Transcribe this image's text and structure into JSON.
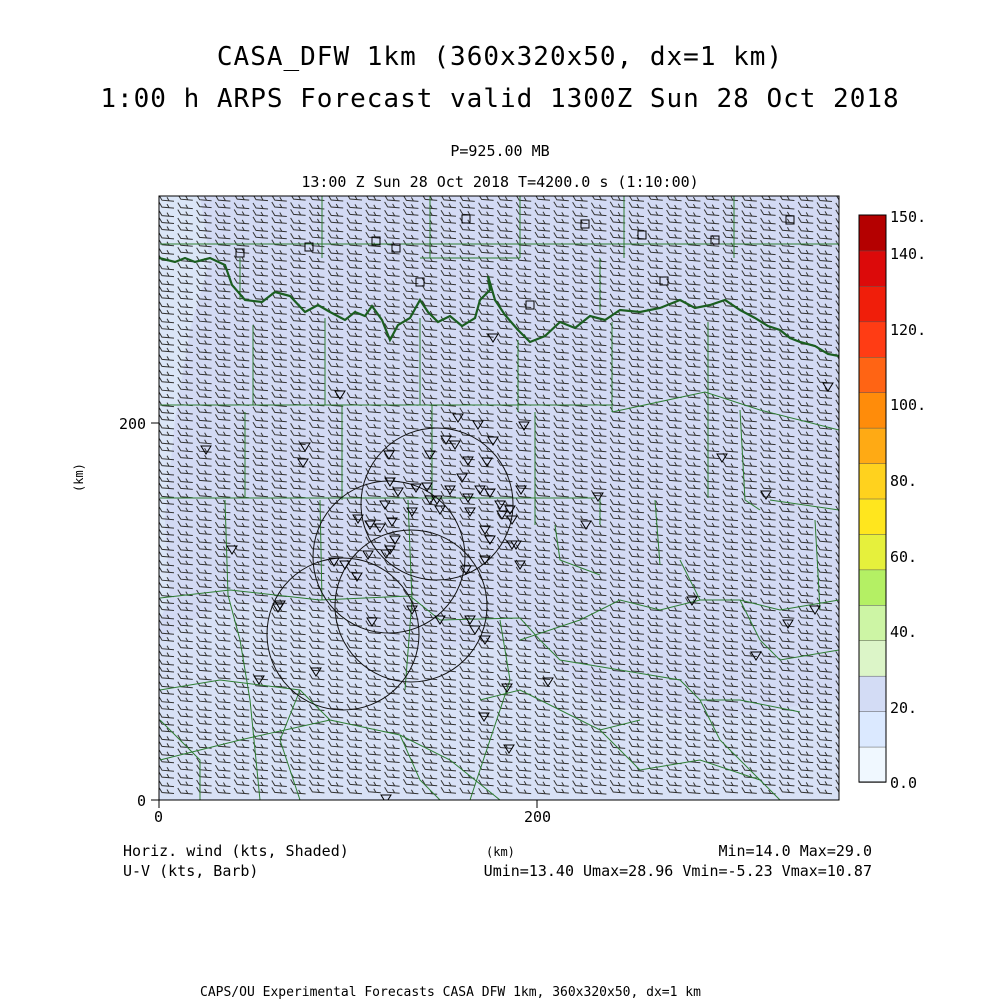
{
  "header": {
    "title1": "CASA_DFW 1km (360x320x50, dx=1 km)",
    "title2": "1:00 h ARPS Forecast valid 1300Z Sun 28 Oct 2018",
    "pressure": "P=925.00 MB",
    "time": "13:00 Z Sun 28 Oct 2018   T=4200.0 s (1:10:00)"
  },
  "axes": {
    "x_unit": "(km)",
    "y_unit": "(km)",
    "x_ticks": [
      "0",
      "200"
    ],
    "y_ticks": [
      "0",
      "200"
    ]
  },
  "colorbar": {
    "labels": [
      "150.",
      "140.",
      "120.",
      "100.",
      "80.",
      "60.",
      "40.",
      "20.",
      "0.0"
    ],
    "colors": [
      "#f0f8ff",
      "#dbe9ff",
      "#d3dcf5",
      "#dcf5c8",
      "#cdf5a5",
      "#b4f064",
      "#e6f03c",
      "#ffe61e",
      "#ffd21e",
      "#ffaa14",
      "#ff8c0a",
      "#ff6414",
      "#ff3c14",
      "#f01e0a",
      "#dc0a0a",
      "#b40000"
    ]
  },
  "legend": {
    "left1": "Horiz. wind (kts, Shaded)",
    "left2": "U-V (kts, Barb)",
    "right1": "Min=14.0 Max=29.0",
    "right2": "Umin=13.40 Umax=28.96 Vmin=-5.23 Vmax=10.87"
  },
  "footer": "CAPS/OU Experimental Forecasts  CASA DFW 1km, 360x320x50, dx=1 km",
  "map": {
    "field_color": "#d3daf4",
    "light_color": "#dde8f8",
    "border_color": "#2e7d32",
    "river_color": "#1b5e20"
  }
}
